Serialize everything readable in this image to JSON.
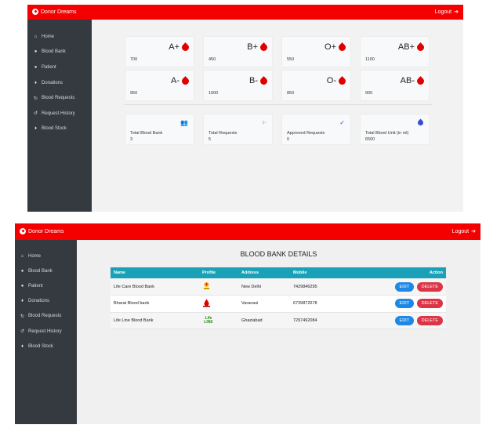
{
  "app": {
    "brand": "Donor Dreams",
    "logout_label": "Logout"
  },
  "sidebar": {
    "items": [
      {
        "label": "Home",
        "icon": "home-icon"
      },
      {
        "label": "Blood Bank",
        "icon": "user-icon"
      },
      {
        "label": "Patient",
        "icon": "user-icon"
      },
      {
        "label": "Donations",
        "icon": "user-donate-icon"
      },
      {
        "label": "Blood Requests",
        "icon": "sync-icon"
      },
      {
        "label": "Request History",
        "icon": "history-icon"
      },
      {
        "label": "Blood Stock",
        "icon": "user-stock-icon"
      }
    ]
  },
  "dashboard": {
    "blood_groups": [
      {
        "group": "A+",
        "count": "700"
      },
      {
        "group": "B+",
        "count": "450"
      },
      {
        "group": "O+",
        "count": "550"
      },
      {
        "group": "AB+",
        "count": "1100"
      },
      {
        "group": "A-",
        "count": "950"
      },
      {
        "group": "B-",
        "count": "1000"
      },
      {
        "group": "O-",
        "count": "850"
      },
      {
        "group": "AB-",
        "count": "900"
      }
    ],
    "stats": [
      {
        "label": "Total Blood Bank",
        "value": "3",
        "icon": "users-icon"
      },
      {
        "label": "Total Requests",
        "value": "5",
        "icon": "spinner-icon"
      },
      {
        "label": "Approved Requests",
        "value": "0",
        "icon": "check-circle-icon"
      },
      {
        "label": "Total Blood Unit (in ml)",
        "value": "6500",
        "icon": "blood-drop-icon"
      }
    ]
  },
  "blood_bank_page": {
    "title": "BLOOD BANK DETAILS",
    "columns": {
      "name": "Name",
      "profile": "Profile",
      "address": "Address",
      "mobile": "Mobile",
      "action": "Action"
    },
    "edit_label": "EDIT",
    "delete_label": "DELETE",
    "rows": [
      {
        "name": "Life Care Blood Bank",
        "address": "New Delhi",
        "mobile": "7429846295"
      },
      {
        "name": "Bharat Blood bank",
        "address": "Varanasi",
        "mobile": "6739872678"
      },
      {
        "name": "Life Line Blood Bank",
        "address": "Ghaziabad",
        "mobile": "7297492084",
        "logo_text": "Life LINE"
      }
    ]
  },
  "colors": {
    "topbar": "#f50000",
    "sidebar": "#343a40",
    "table_header": "#1aa1b8",
    "edit": "#1e88e5",
    "delete": "#dc3545",
    "drop": "#e00000"
  }
}
